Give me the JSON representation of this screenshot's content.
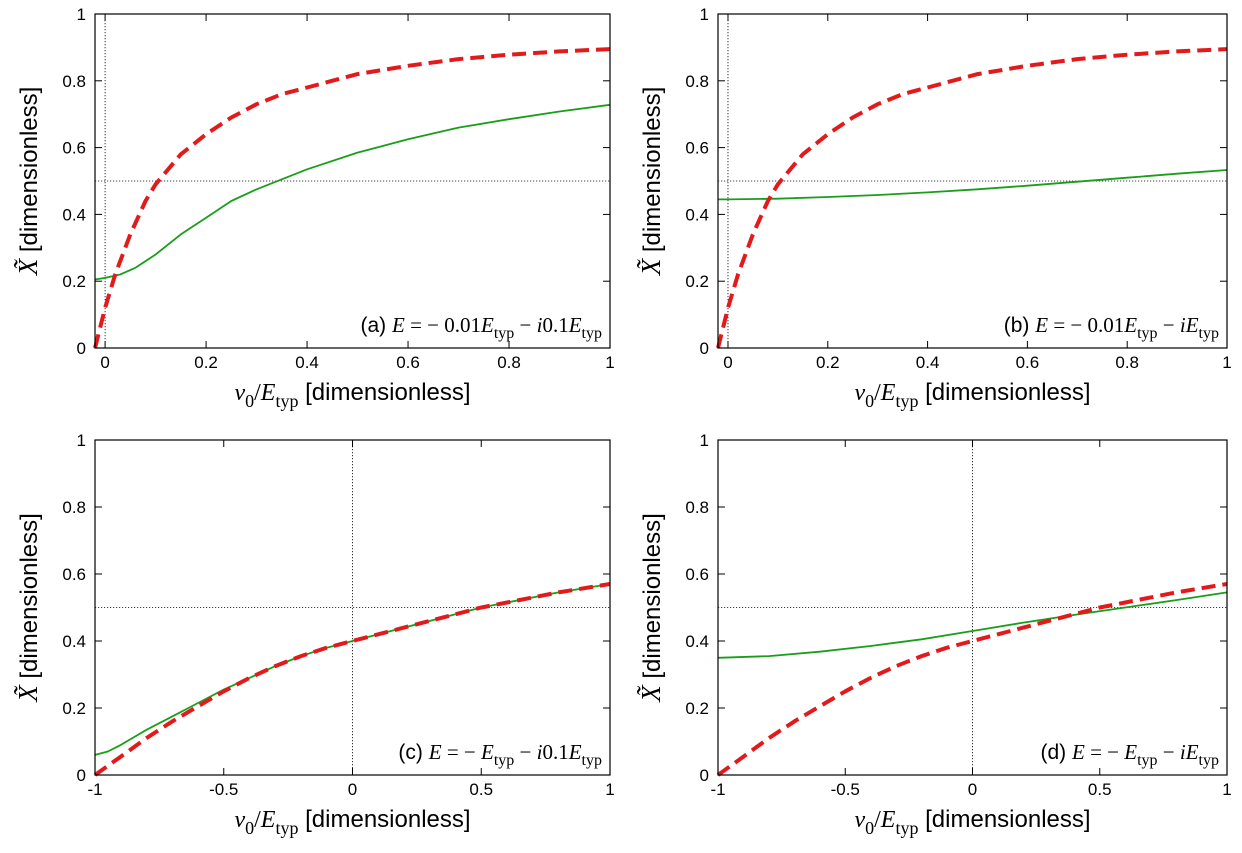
{
  "chart_data": [
    {
      "panel": "a",
      "type": "line",
      "annotation": {
        "tag": "(a)",
        "parts": [
          {
            "t": "E",
            "i": true
          },
          {
            "t": " = − 0.01"
          },
          {
            "t": "E",
            "i": true
          },
          {
            "t": "typ",
            "s": true
          },
          {
            "t": " − "
          },
          {
            "t": "i",
            "i": true
          },
          {
            "t": "0.1"
          },
          {
            "t": "E",
            "i": true
          },
          {
            "t": "typ",
            "s": true
          }
        ]
      },
      "xlabel": {
        "parts": [
          {
            "t": "ν",
            "i": true
          },
          {
            "t": "0",
            "s": true
          },
          {
            "t": "/"
          },
          {
            "t": "E",
            "i": true
          },
          {
            "t": "typ",
            "s": true
          }
        ],
        "unit": " [dimensionless]"
      },
      "ylabel": {
        "sym": "X̃",
        "unit": " [dimensionless]"
      },
      "xlim": [
        -0.02,
        1
      ],
      "ylim": [
        0,
        1
      ],
      "xticks": [
        "0",
        "0.2",
        "0.4",
        "0.6",
        "0.8",
        "1"
      ],
      "xtick_values": [
        0,
        0.2,
        0.4,
        0.6,
        0.8,
        1
      ],
      "yticks": [
        "0",
        "0.2",
        "0.4",
        "0.6",
        "0.8",
        "1"
      ],
      "ytick_values": [
        0,
        0.2,
        0.4,
        0.6,
        0.8,
        1
      ],
      "ref_lines": {
        "x": 0,
        "y": 0.5
      },
      "series": [
        {
          "color": "#e31a1c",
          "style": "dashed",
          "x": [
            -0.02,
            0,
            0.02,
            0.05,
            0.08,
            0.1,
            0.15,
            0.2,
            0.25,
            0.3,
            0.35,
            0.4,
            0.5,
            0.6,
            0.7,
            0.8,
            0.9,
            1.0
          ],
          "y": [
            0.0,
            0.12,
            0.22,
            0.34,
            0.44,
            0.49,
            0.58,
            0.64,
            0.69,
            0.73,
            0.76,
            0.78,
            0.82,
            0.845,
            0.865,
            0.878,
            0.888,
            0.895
          ]
        },
        {
          "color": "#1a9e1a",
          "style": "solid",
          "x": [
            -0.02,
            0,
            0.03,
            0.06,
            0.1,
            0.15,
            0.2,
            0.25,
            0.3,
            0.35,
            0.4,
            0.5,
            0.6,
            0.7,
            0.8,
            0.9,
            1.0
          ],
          "y": [
            0.205,
            0.21,
            0.22,
            0.24,
            0.28,
            0.34,
            0.39,
            0.44,
            0.475,
            0.505,
            0.535,
            0.585,
            0.625,
            0.66,
            0.685,
            0.708,
            0.728
          ]
        }
      ]
    },
    {
      "panel": "b",
      "type": "line",
      "annotation": {
        "tag": "(b)",
        "parts": [
          {
            "t": "E",
            "i": true
          },
          {
            "t": " = − 0.01"
          },
          {
            "t": "E",
            "i": true
          },
          {
            "t": "typ",
            "s": true
          },
          {
            "t": " − "
          },
          {
            "t": "iE",
            "i": true
          },
          {
            "t": "typ",
            "s": true
          }
        ]
      },
      "xlabel": {
        "parts": [
          {
            "t": "ν",
            "i": true
          },
          {
            "t": "0",
            "s": true
          },
          {
            "t": "/"
          },
          {
            "t": "E",
            "i": true
          },
          {
            "t": "typ",
            "s": true
          }
        ],
        "unit": " [dimensionless]"
      },
      "ylabel": {
        "sym": "X̃",
        "unit": " [dimensionless]"
      },
      "xlim": [
        -0.02,
        1
      ],
      "ylim": [
        0,
        1
      ],
      "xticks": [
        "0",
        "0.2",
        "0.4",
        "0.6",
        "0.8",
        "1"
      ],
      "xtick_values": [
        0,
        0.2,
        0.4,
        0.6,
        0.8,
        1
      ],
      "yticks": [
        "0",
        "0.2",
        "0.4",
        "0.6",
        "0.8",
        "1"
      ],
      "ytick_values": [
        0,
        0.2,
        0.4,
        0.6,
        0.8,
        1
      ],
      "ref_lines": {
        "x": 0,
        "y": 0.5
      },
      "series": [
        {
          "color": "#e31a1c",
          "style": "dashed",
          "x": [
            -0.02,
            0,
            0.02,
            0.05,
            0.08,
            0.1,
            0.15,
            0.2,
            0.25,
            0.3,
            0.35,
            0.4,
            0.5,
            0.6,
            0.7,
            0.8,
            0.9,
            1.0
          ],
          "y": [
            0.0,
            0.12,
            0.22,
            0.34,
            0.44,
            0.49,
            0.58,
            0.64,
            0.69,
            0.73,
            0.76,
            0.78,
            0.82,
            0.845,
            0.865,
            0.878,
            0.888,
            0.895
          ]
        },
        {
          "color": "#1a9e1a",
          "style": "solid",
          "x": [
            -0.02,
            0,
            0.1,
            0.2,
            0.3,
            0.4,
            0.5,
            0.6,
            0.7,
            0.8,
            0.9,
            1.0
          ],
          "y": [
            0.445,
            0.445,
            0.447,
            0.452,
            0.458,
            0.466,
            0.475,
            0.486,
            0.498,
            0.51,
            0.522,
            0.533
          ]
        }
      ]
    },
    {
      "panel": "c",
      "type": "line",
      "annotation": {
        "tag": "(c)",
        "parts": [
          {
            "t": "E",
            "i": true
          },
          {
            "t": " = − "
          },
          {
            "t": "E",
            "i": true
          },
          {
            "t": "typ",
            "s": true
          },
          {
            "t": " − "
          },
          {
            "t": "i",
            "i": true
          },
          {
            "t": "0.1"
          },
          {
            "t": "E",
            "i": true
          },
          {
            "t": "typ",
            "s": true
          }
        ]
      },
      "xlabel": {
        "parts": [
          {
            "t": "ν",
            "i": true
          },
          {
            "t": "0",
            "s": true
          },
          {
            "t": "/"
          },
          {
            "t": "E",
            "i": true
          },
          {
            "t": "typ",
            "s": true
          }
        ],
        "unit": " [dimensionless]"
      },
      "ylabel": {
        "sym": "X̃",
        "unit": " [dimensionless]"
      },
      "xlim": [
        -1,
        1
      ],
      "ylim": [
        0,
        1
      ],
      "xticks": [
        "-1",
        "-0.5",
        "0",
        "0.5",
        "1"
      ],
      "xtick_values": [
        -1,
        -0.5,
        0,
        0.5,
        1
      ],
      "yticks": [
        "0",
        "0.2",
        "0.4",
        "0.6",
        "0.8",
        "1"
      ],
      "ytick_values": [
        0,
        0.2,
        0.4,
        0.6,
        0.8,
        1
      ],
      "ref_lines": {
        "x": 0,
        "y": 0.5
      },
      "series": [
        {
          "color": "#e31a1c",
          "style": "dashed",
          "x": [
            -1.0,
            -0.9,
            -0.8,
            -0.7,
            -0.6,
            -0.5,
            -0.4,
            -0.3,
            -0.2,
            -0.1,
            0.0,
            0.2,
            0.4,
            0.5,
            0.6,
            0.8,
            1.0
          ],
          "y": [
            0.0,
            0.055,
            0.11,
            0.16,
            0.205,
            0.25,
            0.29,
            0.325,
            0.355,
            0.38,
            0.4,
            0.44,
            0.48,
            0.5,
            0.515,
            0.545,
            0.57
          ]
        },
        {
          "color": "#1a9e1a",
          "style": "solid",
          "x": [
            -1.0,
            -0.95,
            -0.9,
            -0.8,
            -0.7,
            -0.6,
            -0.5,
            -0.4,
            -0.3,
            -0.2,
            -0.1,
            0.0,
            0.2,
            0.4,
            0.5,
            0.6,
            0.8,
            1.0
          ],
          "y": [
            0.06,
            0.07,
            0.09,
            0.135,
            0.175,
            0.215,
            0.255,
            0.29,
            0.325,
            0.355,
            0.38,
            0.4,
            0.44,
            0.48,
            0.5,
            0.515,
            0.545,
            0.57
          ]
        }
      ]
    },
    {
      "panel": "d",
      "type": "line",
      "annotation": {
        "tag": "(d)",
        "parts": [
          {
            "t": "E",
            "i": true
          },
          {
            "t": " = − "
          },
          {
            "t": "E",
            "i": true
          },
          {
            "t": "typ",
            "s": true
          },
          {
            "t": " − "
          },
          {
            "t": "iE",
            "i": true
          },
          {
            "t": "typ",
            "s": true
          }
        ]
      },
      "xlabel": {
        "parts": [
          {
            "t": "ν",
            "i": true
          },
          {
            "t": "0",
            "s": true
          },
          {
            "t": "/"
          },
          {
            "t": "E",
            "i": true
          },
          {
            "t": "typ",
            "s": true
          }
        ],
        "unit": " [dimensionless]"
      },
      "ylabel": {
        "sym": "X̃",
        "unit": " [dimensionless]"
      },
      "xlim": [
        -1,
        1
      ],
      "ylim": [
        0,
        1
      ],
      "xticks": [
        "-1",
        "-0.5",
        "0",
        "0.5",
        "1"
      ],
      "xtick_values": [
        -1,
        -0.5,
        0,
        0.5,
        1
      ],
      "yticks": [
        "0",
        "0.2",
        "0.4",
        "0.6",
        "0.8",
        "1"
      ],
      "ytick_values": [
        0,
        0.2,
        0.4,
        0.6,
        0.8,
        1
      ],
      "ref_lines": {
        "x": 0,
        "y": 0.5
      },
      "series": [
        {
          "color": "#e31a1c",
          "style": "dashed",
          "x": [
            -1.0,
            -0.9,
            -0.8,
            -0.7,
            -0.6,
            -0.5,
            -0.4,
            -0.3,
            -0.2,
            -0.1,
            0.0,
            0.2,
            0.4,
            0.5,
            0.6,
            0.8,
            1.0
          ],
          "y": [
            0.0,
            0.055,
            0.11,
            0.16,
            0.205,
            0.25,
            0.29,
            0.325,
            0.355,
            0.38,
            0.4,
            0.44,
            0.48,
            0.5,
            0.515,
            0.545,
            0.57
          ]
        },
        {
          "color": "#1a9e1a",
          "style": "solid",
          "x": [
            -1.0,
            -0.8,
            -0.6,
            -0.4,
            -0.2,
            0.0,
            0.2,
            0.4,
            0.6,
            0.8,
            1.0
          ],
          "y": [
            0.35,
            0.355,
            0.368,
            0.385,
            0.405,
            0.43,
            0.455,
            0.478,
            0.5,
            0.522,
            0.545
          ]
        }
      ]
    }
  ]
}
